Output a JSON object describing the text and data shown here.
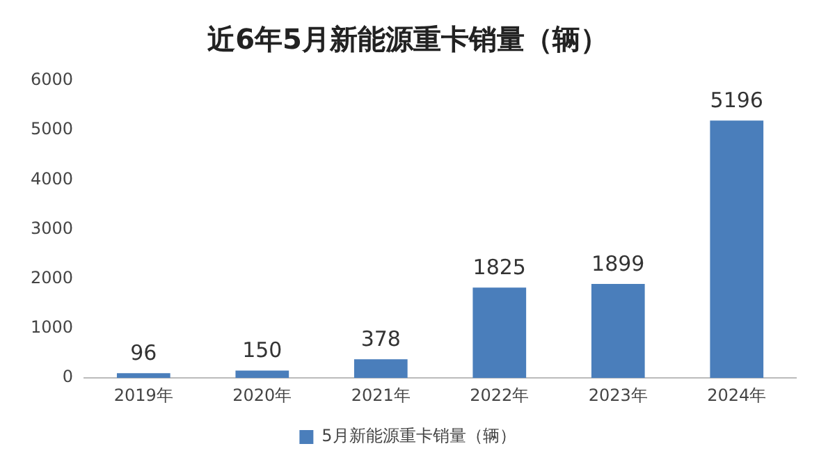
{
  "chart_data": {
    "type": "bar",
    "title": "近6年5月新能源重卡销量（辆）",
    "categories": [
      "2019年",
      "2020年",
      "2021年",
      "2022年",
      "2023年",
      "2024年"
    ],
    "series": [
      {
        "name": "5月新能源重卡销量（辆）",
        "color": "#4a7ebb",
        "values": [
          96,
          150,
          378,
          1825,
          1899,
          5196
        ]
      }
    ],
    "ylim": [
      0,
      6000
    ],
    "yticks": [
      0,
      1000,
      2000,
      3000,
      4000,
      5000,
      6000
    ],
    "grid": false,
    "legend": "bottom",
    "data_labels": true
  }
}
